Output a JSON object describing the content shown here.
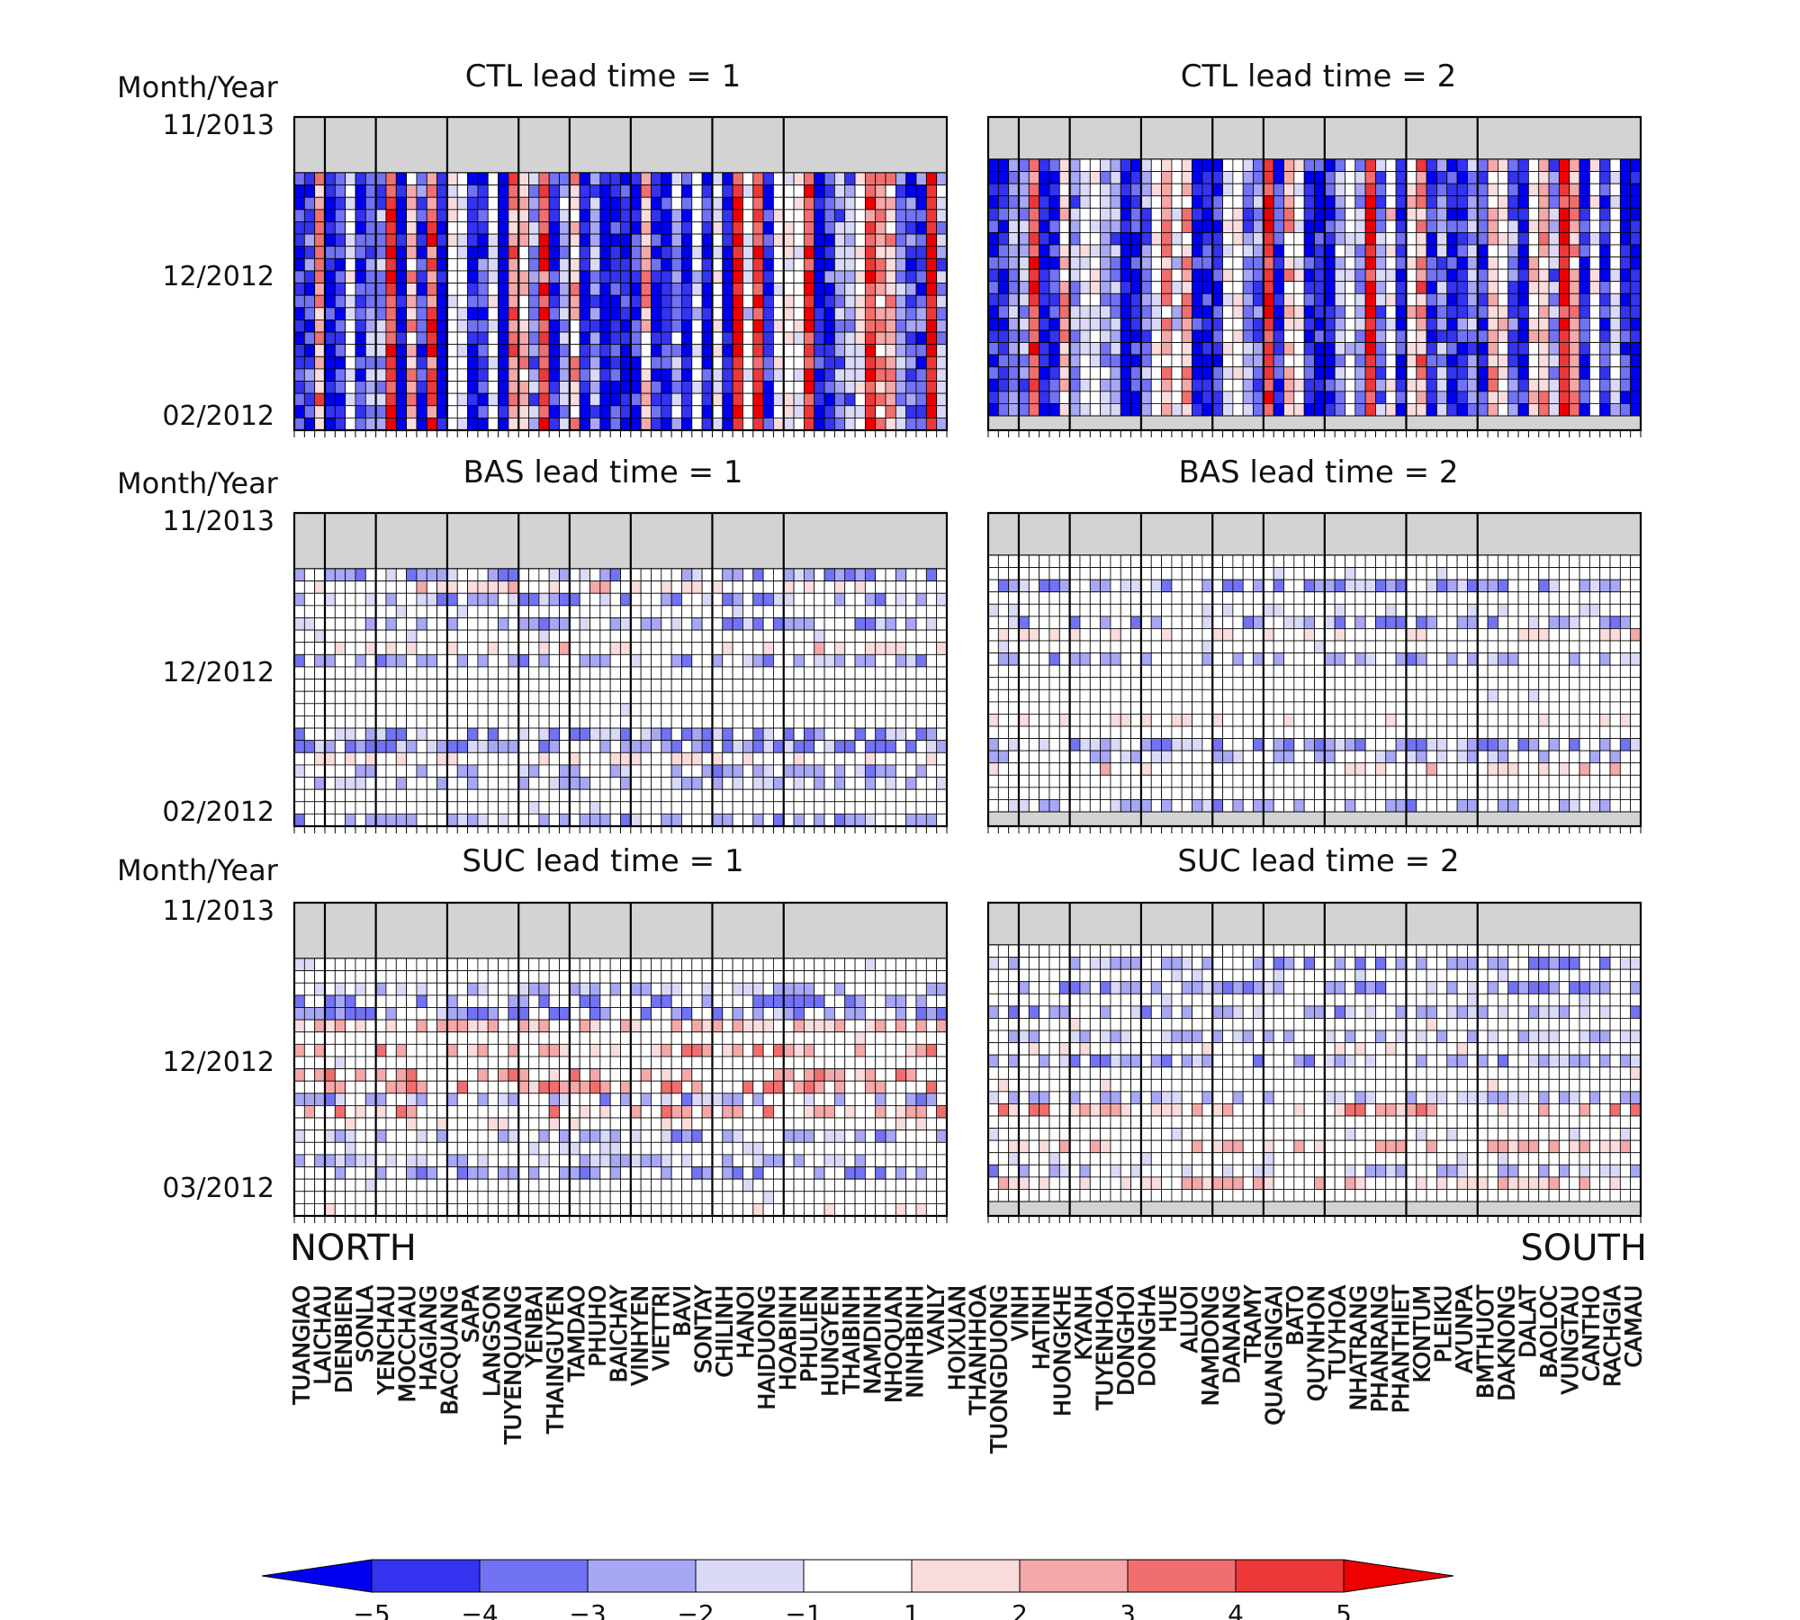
{
  "figure": {
    "y_axis_title": "Month/Year",
    "direction_left": "NORTH",
    "direction_right": "SOUTH",
    "stations": [
      "TUANGIAO",
      "LAICHAU",
      "DIENBIEN",
      "SONLA",
      "YENCHAU",
      "MOCCHAU",
      "HAGIANG",
      "BACQUANG",
      "SAPA",
      "LANGSON",
      "TUYENQUANG",
      "YENBAI",
      "THAINGUYEN",
      "TAMDAO",
      "PHUHO",
      "BAICHAY",
      "VINHYEN",
      "VIETTRI",
      "BAVI",
      "SONTAY",
      "CHILINH",
      "HANOI",
      "HAIDUONG",
      "HOABINH",
      "PHULIEN",
      "HUNGYEN",
      "THAIBINH",
      "NAMDINH",
      "NHOQUAN",
      "NINHBINH",
      "VANLY",
      "HOIXUAN",
      "THANHHOA",
      "TUONGDUONG",
      "VINH",
      "HATINH",
      "HUONGKHE",
      "KYANH",
      "TUYENHOA",
      "DONGHOI",
      "DONGHA",
      "HUE",
      "ALUOI",
      "NAMDONG",
      "DANANG",
      "TRAMY",
      "QUANGNGAI",
      "BATO",
      "QUYNHON",
      "TUYHOA",
      "NHATRANG",
      "PHANRANG",
      "PHANTHIET",
      "KONTUM",
      "PLEIKU",
      "AYUNPA",
      "BMTHUOT",
      "DAKNONG",
      "DALAT",
      "BAOLOC",
      "VUNGTAU",
      "CANTHO",
      "RACHGIA",
      "CAMAU"
    ]
  },
  "colorbar": {
    "tick_labels": [
      "−5",
      "−4",
      "−3",
      "−2",
      "−1",
      "1",
      "2",
      "3",
      "4",
      "5"
    ],
    "colors": [
      "#0000f0",
      "#3333f0",
      "#7272f5",
      "#a7a7f5",
      "#dadaf8",
      "#ffffff",
      "#fadcdc",
      "#f5a8a8",
      "#f06e6e",
      "#ec3838",
      "#ee0000"
    ],
    "missing_color": "#d3d3d3"
  },
  "chart_data": [
    {
      "type": "heatmap",
      "title": "CTL lead time = 1",
      "ylabel": "Month/Year",
      "y_ticks": [
        "11/2013",
        "12/2012",
        "02/2012"
      ],
      "rows": 21,
      "columns": 64,
      "value_range": [
        -5,
        5
      ],
      "pattern": "strong",
      "seed": 11
    },
    {
      "type": "heatmap",
      "title": "CTL lead time = 2",
      "ylabel": "",
      "y_ticks": [],
      "rows": 21,
      "columns": 64,
      "value_range": [
        -5,
        5
      ],
      "pattern": "strong",
      "seed": 12
    },
    {
      "type": "heatmap",
      "title": "BAS lead time = 1",
      "ylabel": "Month/Year",
      "y_ticks": [
        "11/2013",
        "12/2012",
        "02/2012"
      ],
      "rows": 21,
      "columns": 64,
      "value_range": [
        -5,
        5
      ],
      "pattern": "weak-blue",
      "seed": 21
    },
    {
      "type": "heatmap",
      "title": "BAS lead time = 2",
      "ylabel": "",
      "y_ticks": [],
      "rows": 21,
      "columns": 64,
      "value_range": [
        -5,
        5
      ],
      "pattern": "weak-blue",
      "seed": 22
    },
    {
      "type": "heatmap",
      "title": "SUC lead time = 1",
      "ylabel": "Month/Year",
      "y_ticks": [
        "11/2013",
        "12/2012",
        "03/2012"
      ],
      "rows": 21,
      "columns": 64,
      "value_range": [
        -5,
        5
      ],
      "pattern": "weak-mixed",
      "seed": 31
    },
    {
      "type": "heatmap",
      "title": "SUC lead time = 2",
      "ylabel": "",
      "y_ticks": [],
      "rows": 21,
      "columns": 64,
      "value_range": [
        -5,
        5
      ],
      "pattern": "weak-mixed",
      "seed": 32
    }
  ]
}
